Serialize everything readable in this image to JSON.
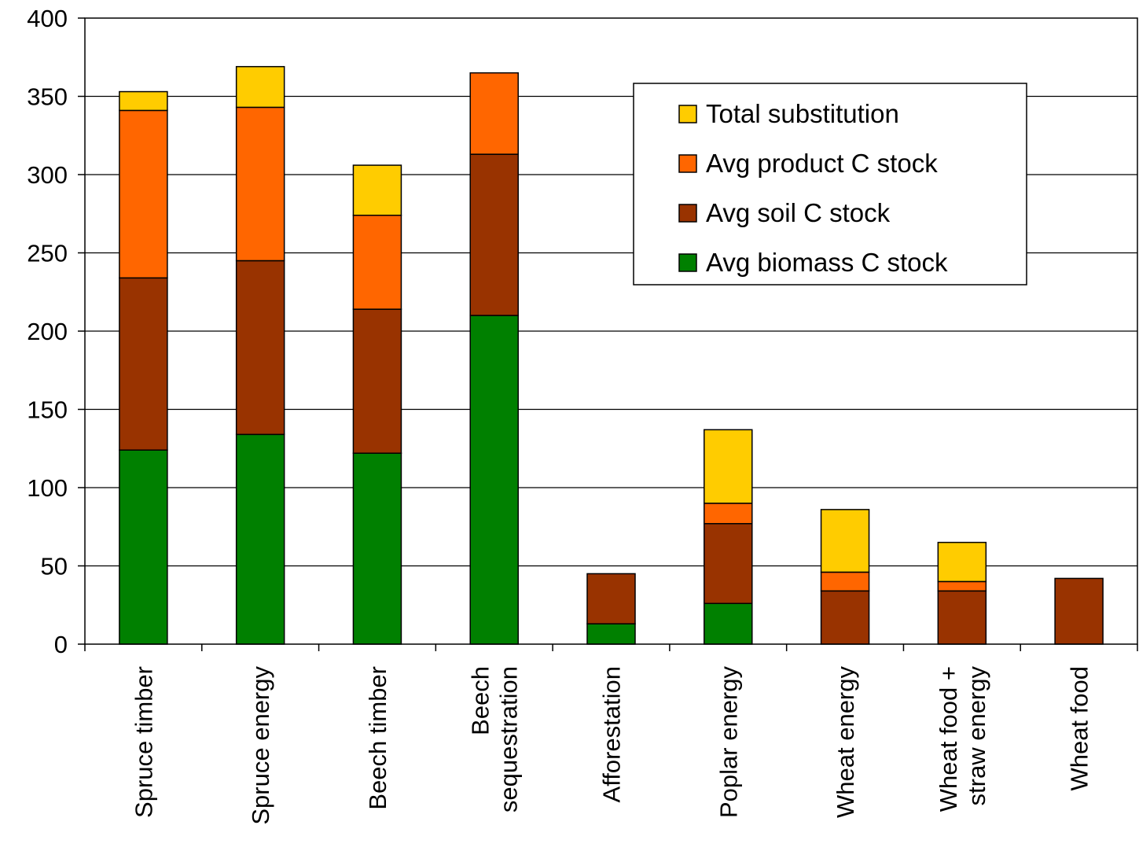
{
  "chart_data": {
    "type": "bar",
    "stacked": true,
    "title": "",
    "xlabel": "",
    "ylabel": "",
    "ylim": [
      0,
      400
    ],
    "yticks": [
      0,
      50,
      100,
      150,
      200,
      250,
      300,
      350,
      400
    ],
    "grid": true,
    "legend_position": "top-right",
    "categories": [
      [
        "Spruce timber"
      ],
      [
        "Spruce energy"
      ],
      [
        "Beech timber"
      ],
      [
        "Beech",
        "sequestration"
      ],
      [
        "Afforestation"
      ],
      [
        "Poplar energy"
      ],
      [
        "Wheat energy"
      ],
      [
        "Wheat food +",
        "straw energy"
      ],
      [
        "Wheat food"
      ]
    ],
    "series": [
      {
        "name": "Avg biomass C stock",
        "color": "#008000",
        "values": [
          124,
          134,
          122,
          210,
          13,
          26,
          0,
          0,
          0
        ]
      },
      {
        "name": "Avg soil C stock",
        "color": "#993300",
        "values": [
          110,
          111,
          92,
          103,
          32,
          51,
          34,
          34,
          42
        ]
      },
      {
        "name": "Avg product C stock",
        "color": "#FF6600",
        "values": [
          107,
          98,
          60,
          52,
          0,
          13,
          12,
          6,
          0
        ]
      },
      {
        "name": "Total substitution",
        "color": "#FFCC00",
        "values": [
          12,
          26,
          32,
          0,
          0,
          47,
          40,
          25,
          0
        ]
      }
    ],
    "legend_order": [
      "Total substitution",
      "Avg product C stock",
      "Avg soil C stock",
      "Avg biomass C stock"
    ]
  }
}
